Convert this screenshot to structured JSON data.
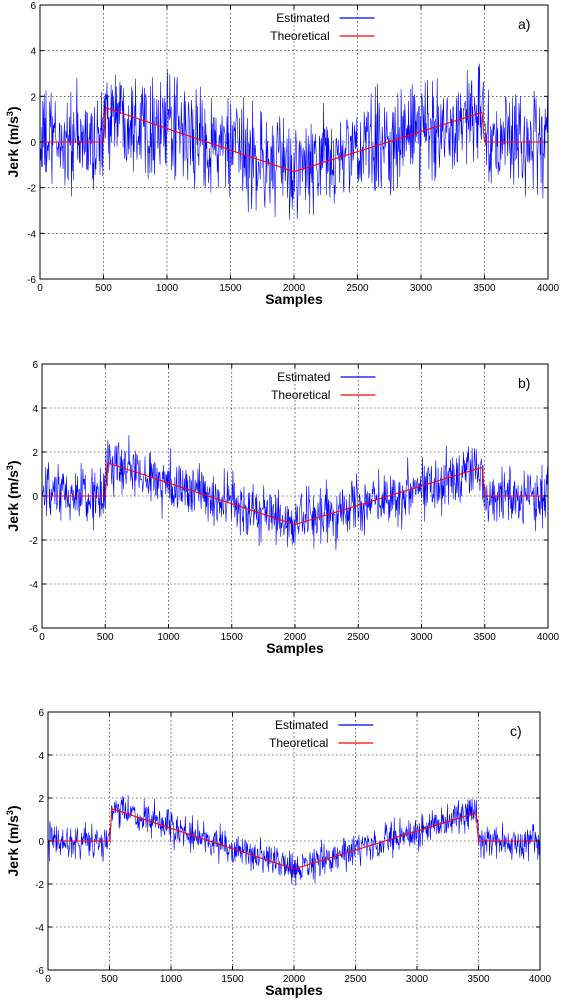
{
  "chart_data": [
    {
      "type": "line",
      "panel_label": "a)",
      "xlabel": "Samples",
      "ylabel_base": "Jerk (m/s",
      "ylabel_sup": "3",
      "ylabel_close": ")",
      "xlim": [
        0,
        4000
      ],
      "ylim": [
        -6,
        6
      ],
      "xticks": [
        0,
        500,
        1000,
        1500,
        2000,
        2500,
        3000,
        3500,
        4000
      ],
      "yticks": [
        -6,
        -4,
        -2,
        0,
        2,
        4,
        6
      ],
      "grid": true,
      "legend_position": "top-right",
      "noise_amplitude": 1.4,
      "series": [
        {
          "name": "Estimated",
          "color": "#0000ff",
          "style": "noisy",
          "x": [
            0,
            500,
            520,
            2000,
            3480,
            3500,
            4000
          ],
          "values": [
            0,
            0,
            1.5,
            -1.3,
            1.3,
            0,
            0
          ]
        },
        {
          "name": "Theoretical",
          "color": "#ff0000",
          "style": "line",
          "x": [
            0,
            500,
            520,
            2000,
            3480,
            3500,
            4000
          ],
          "values": [
            0,
            0,
            1.5,
            -1.3,
            1.3,
            0,
            0
          ]
        }
      ]
    },
    {
      "type": "line",
      "panel_label": "b)",
      "xlabel": "Samples",
      "ylabel_base": "Jerk (m/s",
      "ylabel_sup": "3",
      "ylabel_close": ")",
      "xlim": [
        0,
        4000
      ],
      "ylim": [
        -6,
        6
      ],
      "xticks": [
        0,
        500,
        1000,
        1500,
        2000,
        2500,
        3000,
        3500,
        4000
      ],
      "yticks": [
        -6,
        -4,
        -2,
        0,
        2,
        4,
        6
      ],
      "grid": true,
      "legend_position": "top-right",
      "noise_amplitude": 0.85,
      "series": [
        {
          "name": "Estimated",
          "color": "#0000ff",
          "style": "noisy",
          "x": [
            0,
            500,
            520,
            2000,
            3480,
            3500,
            4000
          ],
          "values": [
            0,
            0,
            1.5,
            -1.3,
            1.3,
            0,
            0
          ]
        },
        {
          "name": "Theoretical",
          "color": "#ff0000",
          "style": "line",
          "x": [
            0,
            500,
            520,
            2000,
            3480,
            3500,
            4000
          ],
          "values": [
            0,
            0,
            1.5,
            -1.3,
            1.3,
            0,
            0
          ]
        }
      ]
    },
    {
      "type": "line",
      "panel_label": "c)",
      "xlabel": "Samples",
      "ylabel_base": "Jerk (m/s",
      "ylabel_sup": "3",
      "ylabel_close": ")",
      "xlim": [
        0,
        4000
      ],
      "ylim": [
        -6,
        6
      ],
      "xticks": [
        0,
        500,
        1000,
        1500,
        2000,
        2500,
        3000,
        3500,
        4000
      ],
      "yticks": [
        -6,
        -4,
        -2,
        0,
        2,
        4,
        6
      ],
      "grid": true,
      "legend_position": "top-right",
      "noise_amplitude": 0.5,
      "series": [
        {
          "name": "Estimated",
          "color": "#0000ff",
          "style": "noisy",
          "x": [
            0,
            500,
            520,
            2000,
            3480,
            3500,
            4000
          ],
          "values": [
            0,
            0,
            1.5,
            -1.3,
            1.3,
            0,
            0
          ]
        },
        {
          "name": "Theoretical",
          "color": "#ff0000",
          "style": "line",
          "x": [
            0,
            500,
            520,
            2000,
            3480,
            3500,
            4000
          ],
          "values": [
            0,
            0,
            1.5,
            -1.3,
            1.3,
            0,
            0
          ]
        }
      ]
    }
  ]
}
